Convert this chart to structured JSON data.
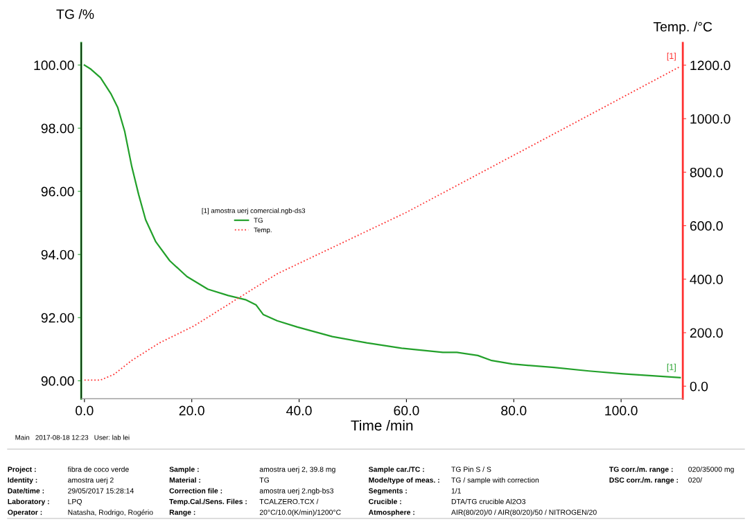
{
  "chart_data": {
    "type": "line",
    "xlabel": "Time /min",
    "ylabel": "TG /%",
    "y2label": "Temp. /°C",
    "legend_title": "[1] amostra uerj comercial.ngb-ds3",
    "legend": "center left",
    "grid": false,
    "xlim": [
      -0.6,
      111.5
    ],
    "xticks": [
      {
        "value": 0,
        "label": "0.0"
      },
      {
        "value": 20,
        "label": "20.0"
      },
      {
        "value": 40,
        "label": "40.0"
      },
      {
        "value": 60,
        "label": "60.0"
      },
      {
        "value": 80,
        "label": "80.0"
      },
      {
        "value": 100,
        "label": "100.0"
      }
    ],
    "ylim": [
      89.43,
      100.7
    ],
    "yticks": [
      {
        "value": 90,
        "label": "90.00"
      },
      {
        "value": 92,
        "label": "92.00"
      },
      {
        "value": 94,
        "label": "94.00"
      },
      {
        "value": 96,
        "label": "96.00"
      },
      {
        "value": 98,
        "label": "98.00"
      },
      {
        "value": 100,
        "label": "100.00"
      }
    ],
    "y2lim": [
      -47,
      1283
    ],
    "y2ticks": [
      {
        "value": 0,
        "label": "0.0"
      },
      {
        "value": 200,
        "label": "200.0"
      },
      {
        "value": 400,
        "label": "400.0"
      },
      {
        "value": 600,
        "label": "600.0"
      },
      {
        "value": 800,
        "label": "800.0"
      },
      {
        "value": 1000,
        "label": "1000.0"
      },
      {
        "value": 1200,
        "label": "1200.0"
      }
    ],
    "series": [
      {
        "name": "TG",
        "color": "#22a02a",
        "line_style": "solid",
        "x": [
          0,
          1.2,
          3.0,
          4.9,
          6.2,
          7.5,
          8.8,
          10.1,
          11.4,
          13.3,
          15.9,
          19.1,
          23.0,
          26.8,
          30.0,
          32.0,
          33.3,
          35.9,
          39.7,
          46.2,
          52.6,
          59.1,
          66.8,
          69.4,
          73.3,
          75.9,
          79.7,
          87.5,
          94.0,
          100.4,
          106.8,
          111.0
        ],
        "values": [
          100.0,
          99.87,
          99.6,
          99.1,
          98.66,
          97.9,
          96.8,
          95.9,
          95.1,
          94.4,
          93.8,
          93.3,
          92.9,
          92.7,
          92.57,
          92.4,
          92.1,
          91.9,
          91.7,
          91.4,
          91.2,
          91.03,
          90.9,
          90.9,
          90.8,
          90.64,
          90.53,
          90.42,
          90.31,
          90.22,
          90.15,
          90.1
        ]
      },
      {
        "name": "Temp.",
        "color": "#ff3030",
        "line_style": "dotted",
        "axis": "y2",
        "x": [
          0,
          3.0,
          5.5,
          8.8,
          13.9,
          20.4,
          35.9,
          60.0,
          90.0,
          111.0
        ],
        "values": [
          23,
          23,
          44,
          96,
          161,
          225,
          420,
          650,
          970,
          1195
        ]
      }
    ],
    "annotations": [
      "[1]",
      {
        "text": "[1]",
        "x": 111.0,
        "y": 90.1
      },
      "Main   2017-08-18 12:23   User: lab lei",
      "Project :",
      "fibra de coco verde",
      "Identity :",
      "amostra uerj 2",
      "Date/time :",
      "29/05/2017 15:28:14",
      "Laboratory :",
      "LPQ",
      "Operator :",
      "Natasha, Rodrigo, Rogério",
      "Sample :",
      "amostra uerj 2, 39.8 mg",
      "Material :",
      "TG",
      "Correction file :",
      "amostra uerj 2.ngb-bs3",
      "Temp.Cal./Sens. Files :",
      "TCALZERO.TCX /",
      "Range :",
      "20°C/10.0(K/min)/1200°C",
      "Sample car./TC :",
      "TG Pin S / S",
      "Mode/type of meas. :",
      "TG / sample with correction",
      "Segments :",
      "1/1",
      "Crucible :",
      "DTA/TG crucible Al2O3",
      "Atmosphere :",
      "AIR(80/20)/0 / AIR(80/20)/50 / NITROGEN/20",
      "TG corr./m. range :",
      "020/35000 mg",
      "DSC corr./m. range :",
      "020/"
    ]
  }
}
